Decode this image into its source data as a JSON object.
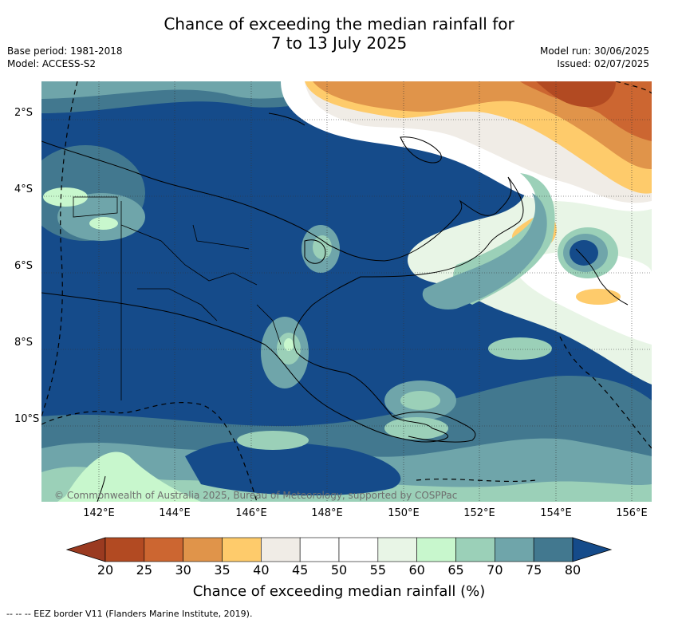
{
  "title": {
    "line1": "Chance of exceeding the median rainfall for",
    "line2": "7 to 13 July 2025"
  },
  "meta_left": {
    "base_period": "Base period: 1981-2018",
    "model": "Model: ACCESS-S2"
  },
  "meta_right": {
    "model_run": "Model run: 30/06/2025",
    "issued": "Issued: 02/07/2025"
  },
  "map": {
    "lat_labels": [
      "2°S",
      "4°S",
      "6°S",
      "8°S",
      "10°S"
    ],
    "lon_labels": [
      "142°E",
      "144°E",
      "146°E",
      "148°E",
      "150°E",
      "152°E",
      "154°E",
      "156°E"
    ],
    "copyright": "© Commonwealth of Australia 2025, Bureau of Meteorology, supported by COSPPac"
  },
  "colorbar": {
    "ticks": [
      "20",
      "25",
      "30",
      "35",
      "40",
      "45",
      "50",
      "55",
      "60",
      "65",
      "70",
      "75",
      "80"
    ],
    "colors": [
      "#b24a22",
      "#cc6631",
      "#e0944a",
      "#fecb6b",
      "#f0ece6",
      "#ffffff",
      "#ffffff",
      "#e8f5e6",
      "#c8f7cd",
      "#9bd0b8",
      "#6fa5aa",
      "#42788f"
    ],
    "under_color": "#9a3a20",
    "over_color": "#154b8a",
    "label": "Chance of exceeding median rainfall (%)"
  },
  "footnote": "--  --  -- EEZ border V11 (Flanders Marine Institute, 2019)."
}
